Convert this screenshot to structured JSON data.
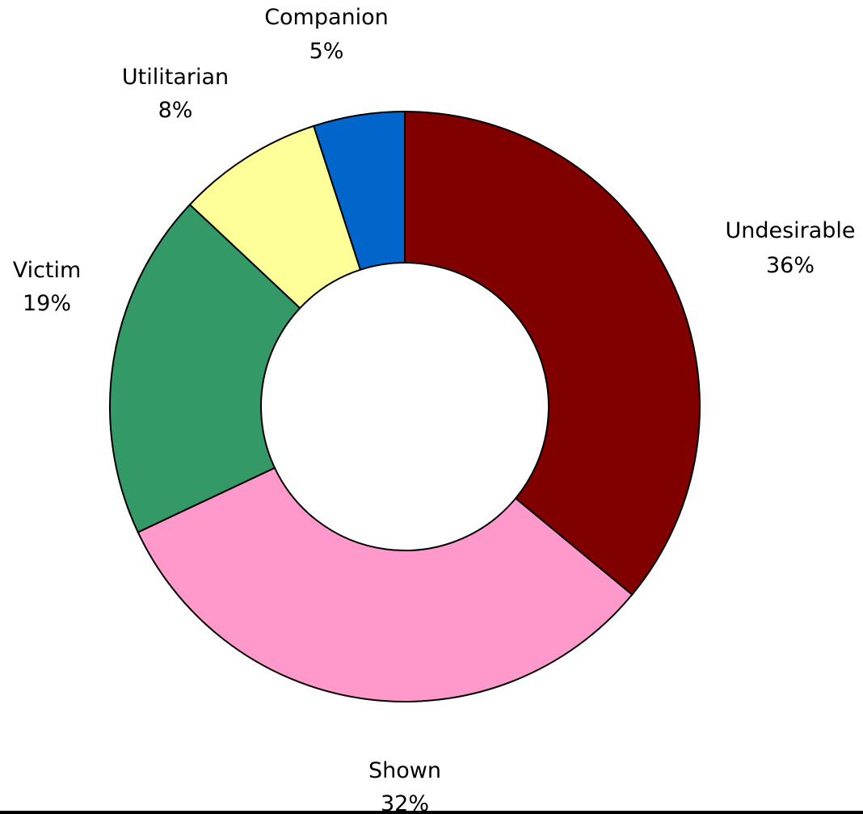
{
  "chart_data": {
    "type": "pie",
    "variant": "donut",
    "title": "",
    "categories": [
      "Undesirable",
      "Shown",
      "Victim",
      "Utilitarian",
      "Companion"
    ],
    "values": [
      36,
      32,
      19,
      8,
      5
    ],
    "value_labels": [
      "36%",
      "32%",
      "19%",
      "8%",
      "5%"
    ],
    "colors": [
      "#800000",
      "#FF99CC",
      "#339966",
      "#FFFF99",
      "#0066CC"
    ],
    "start_angle_deg": 0,
    "direction": "clockwise",
    "legend": "none",
    "data_labels": "outside"
  }
}
